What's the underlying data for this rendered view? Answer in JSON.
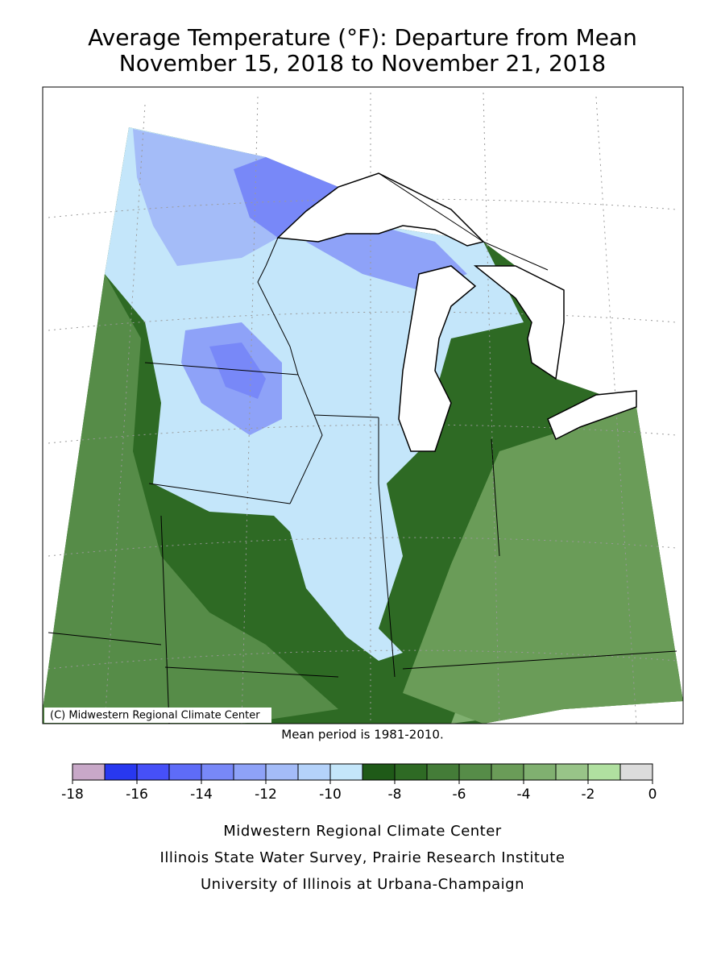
{
  "title": "Average Temperature (°F): Departure from Mean",
  "subtitle": "November 15, 2018 to November 21, 2018",
  "map": {
    "copyright": "(C) Midwestern Regional Climate Center"
  },
  "note": "Mean period is 1981-2010.",
  "legend": {
    "bins": [
      -18,
      -17,
      -16,
      -15,
      -14,
      -13,
      -12,
      -11,
      -10,
      -9,
      -8,
      -7,
      -6,
      -5,
      -4,
      -3,
      -2,
      -1,
      0
    ],
    "colors": [
      "#c8a8c8",
      "#2838f0",
      "#4650f8",
      "#5e6cf8",
      "#7888f8",
      "#8ea2f8",
      "#a4bcf8",
      "#b4d2fa",
      "#c4e6fa",
      "#1f5a18",
      "#2e6a24",
      "#447c38",
      "#568c48",
      "#6a9c58",
      "#80b070",
      "#98c488",
      "#b0e0a0",
      "#dcdcdc"
    ],
    "ticks": [
      -18,
      -16,
      -14,
      -12,
      -10,
      -8,
      -6,
      -4,
      -2,
      0
    ]
  },
  "footer": [
    "Midwestern Regional Climate Center",
    "Illinois State Water Survey, Prairie Research Institute",
    "University of Illinois at Urbana-Champaign"
  ]
}
